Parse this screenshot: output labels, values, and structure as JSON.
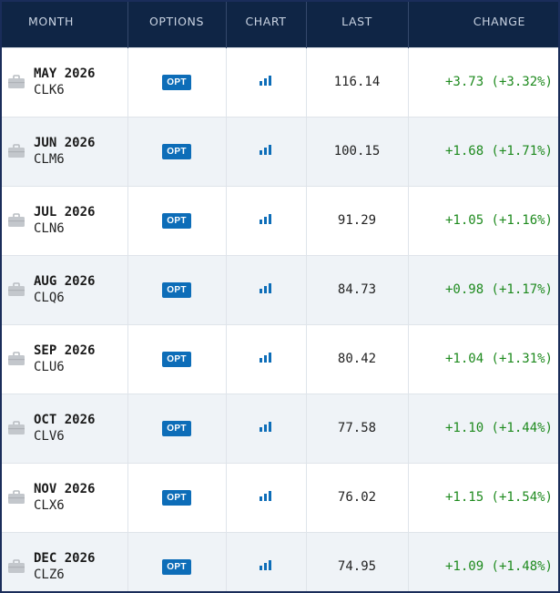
{
  "header": {
    "month": "MONTH",
    "options": "OPTIONS",
    "chart": "CHART",
    "last": "LAST",
    "change": "CHANGE"
  },
  "colors": {
    "header_bg": "#0f2545",
    "opt_button": "#0d6db8",
    "positive_change": "#1e8a1e",
    "alt_row": "#eff3f7"
  },
  "icons": {
    "row_icon": "briefcase-icon",
    "chart": "bar-chart-icon"
  },
  "rows": [
    {
      "month": "MAY 2026",
      "code": "CLK6",
      "opt": "OPT",
      "last": "116.14",
      "change": "+3.73 (+3.32%)"
    },
    {
      "month": "JUN 2026",
      "code": "CLM6",
      "opt": "OPT",
      "last": "100.15",
      "change": "+1.68 (+1.71%)"
    },
    {
      "month": "JUL 2026",
      "code": "CLN6",
      "opt": "OPT",
      "last": "91.29",
      "change": "+1.05 (+1.16%)"
    },
    {
      "month": "AUG 2026",
      "code": "CLQ6",
      "opt": "OPT",
      "last": "84.73",
      "change": "+0.98 (+1.17%)"
    },
    {
      "month": "SEP 2026",
      "code": "CLU6",
      "opt": "OPT",
      "last": "80.42",
      "change": "+1.04 (+1.31%)"
    },
    {
      "month": "OCT 2026",
      "code": "CLV6",
      "opt": "OPT",
      "last": "77.58",
      "change": "+1.10 (+1.44%)"
    },
    {
      "month": "NOV 2026",
      "code": "CLX6",
      "opt": "OPT",
      "last": "76.02",
      "change": "+1.15 (+1.54%)"
    },
    {
      "month": "DEC 2026",
      "code": "CLZ6",
      "opt": "OPT",
      "last": "74.95",
      "change": "+1.09 (+1.48%)"
    }
  ]
}
